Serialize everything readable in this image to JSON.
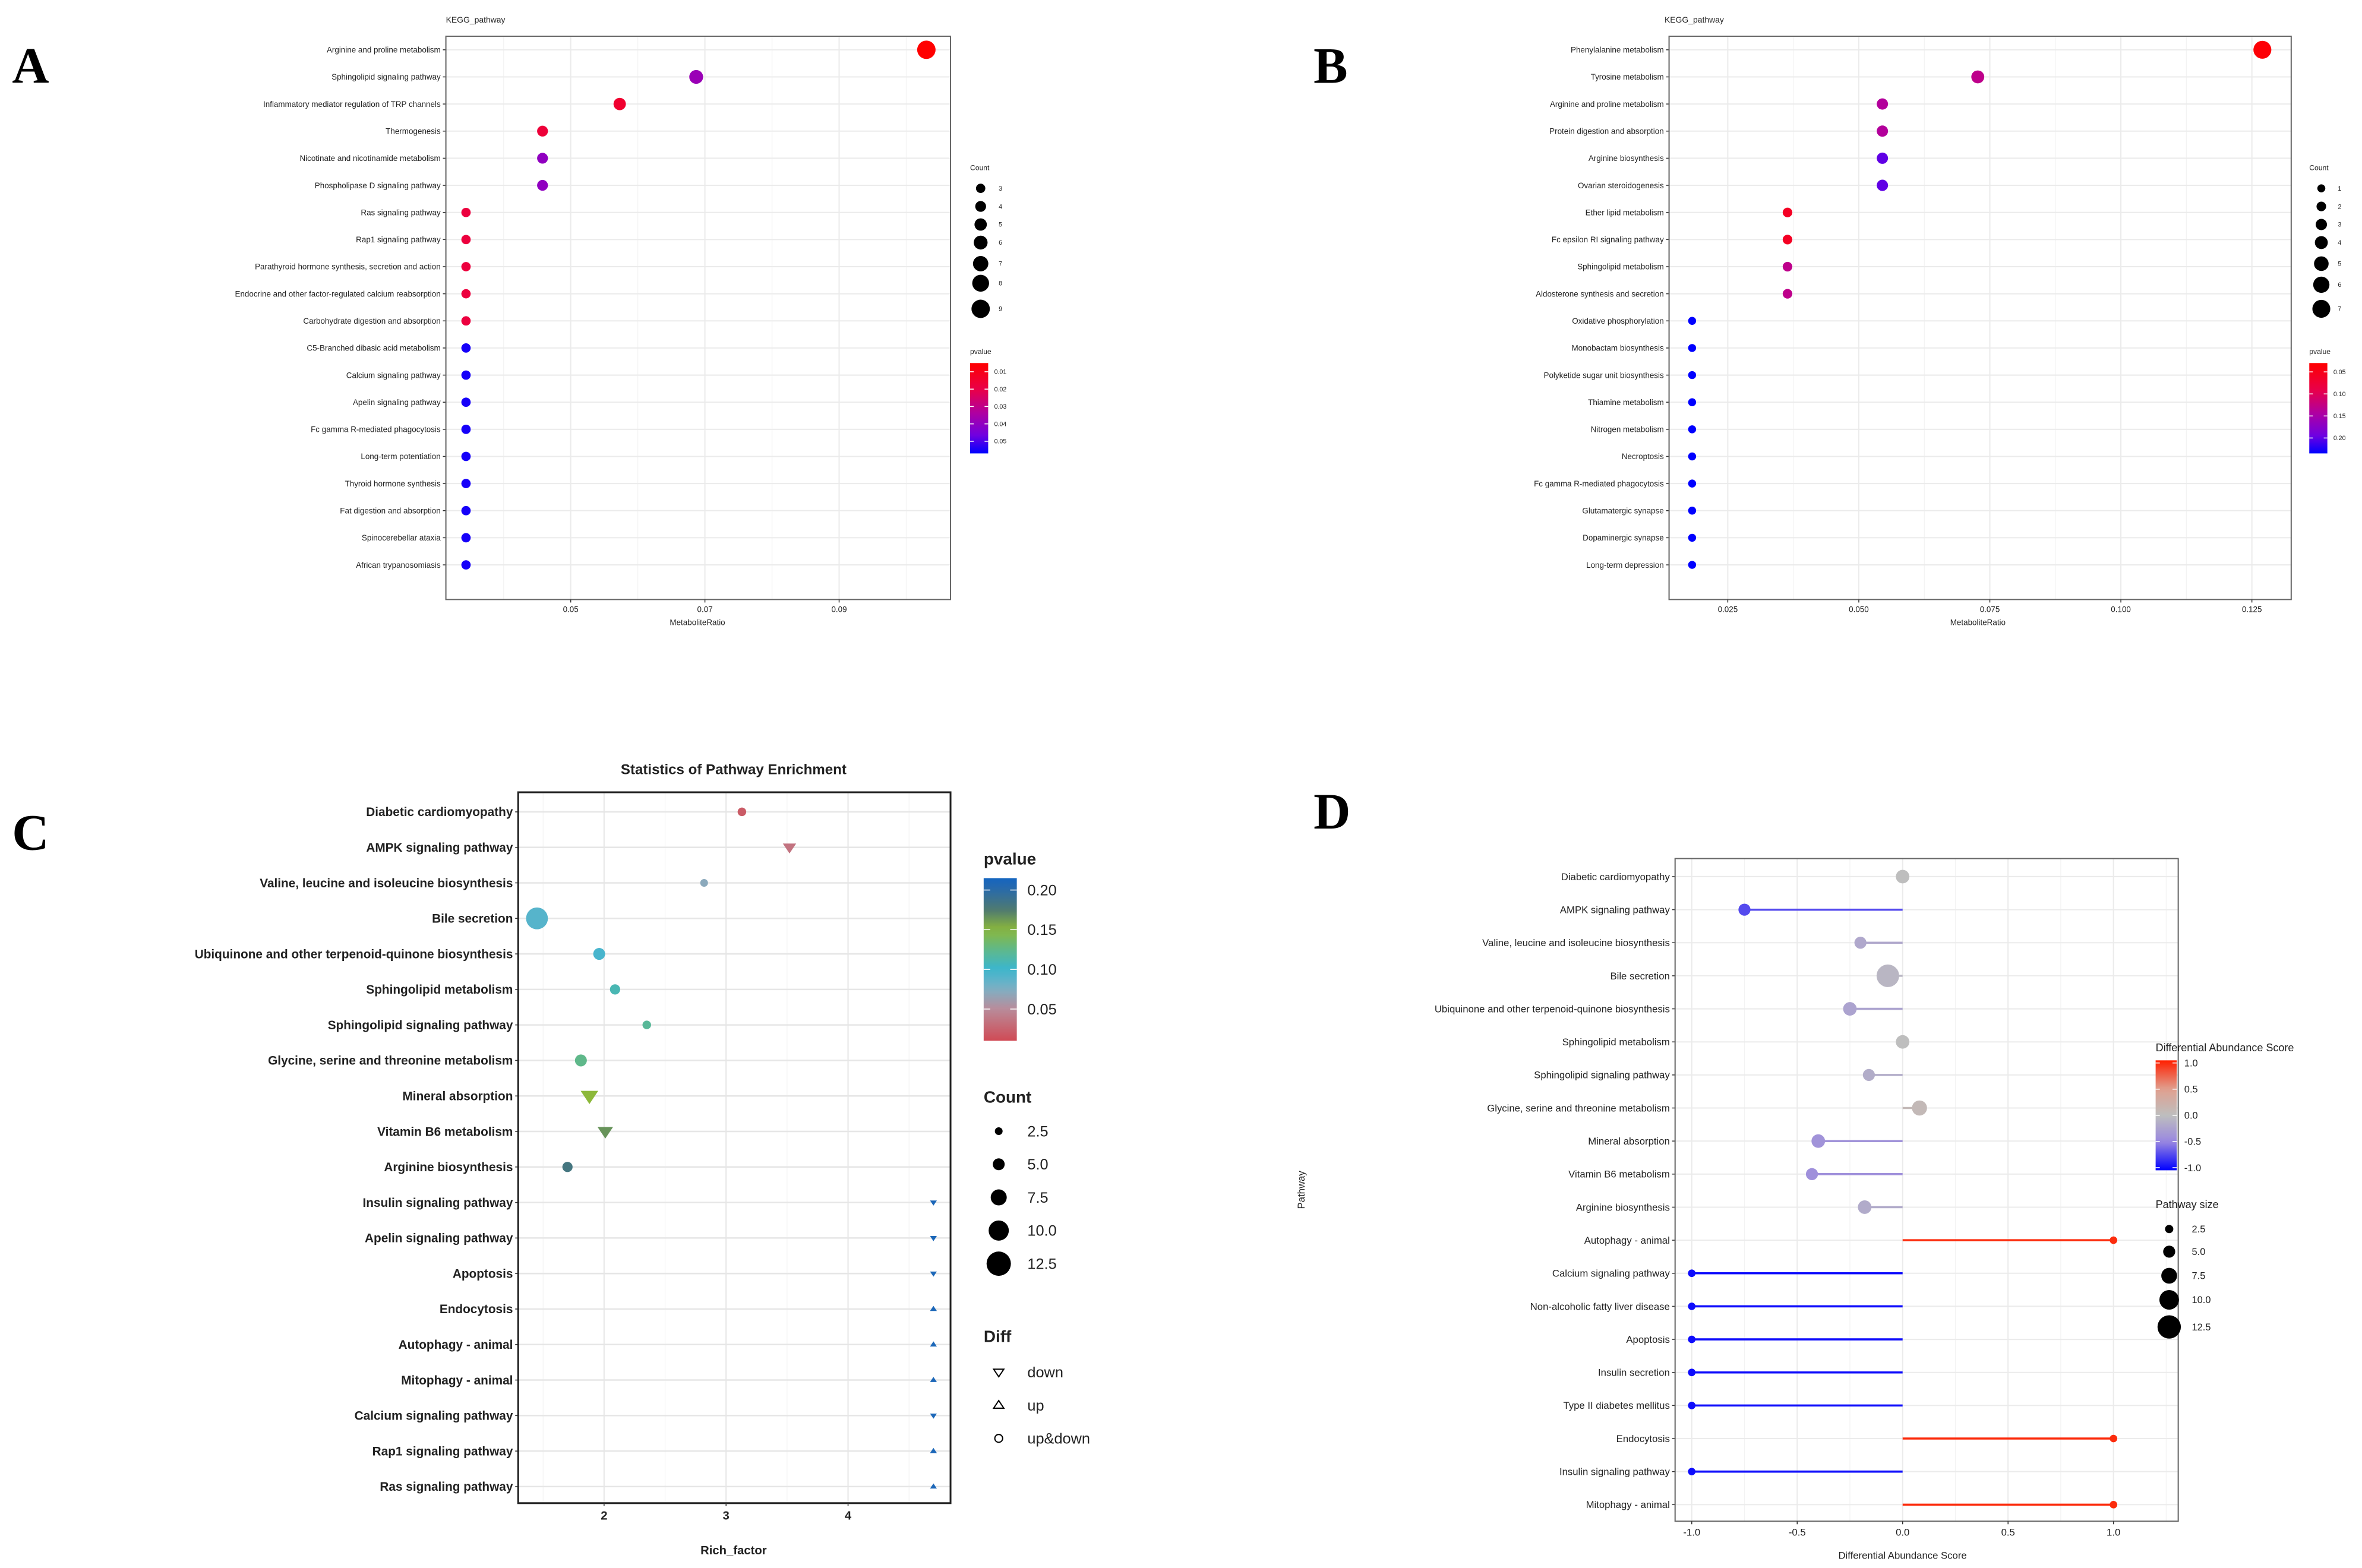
{
  "panel_labels": [
    "A",
    "B",
    "C",
    "D"
  ],
  "chart_data": [
    {
      "panel": "A",
      "type": "scatter",
      "title": "KEGG_pathway",
      "xlabel": "MetaboliteRatio",
      "xlim": [
        0.0314,
        0.1066
      ],
      "xticks": [
        0.05,
        0.07,
        0.09
      ],
      "xtick_labels": [
        "0.05",
        "0.07",
        "0.09"
      ],
      "categories": [
        "Arginine and proline metabolism",
        "Sphingolipid signaling pathway",
        "Inflammatory mediator regulation of TRP channels",
        "Thermogenesis",
        "Nicotinate and nicotinamide metabolism",
        "Phospholipase D signaling pathway",
        "Ras signaling pathway",
        "Rap1 signaling pathway",
        "Parathyroid hormone synthesis, secretion and action",
        "Endocrine and other factor-regulated calcium reabsorption",
        "Carbohydrate digestion and absorption",
        "C5-Branched dibasic acid metabolism",
        "Calcium signaling pathway",
        "Apelin signaling pathway",
        "Fc gamma R-mediated phagocytosis",
        "Long-term potentiation",
        "Thyroid hormone synthesis",
        "Fat digestion and absorption",
        "Spinocerebellar ataxia",
        "African trypanosomiasis"
      ],
      "x": [
        0.103,
        0.0687,
        0.0573,
        0.0458,
        0.0458,
        0.0458,
        0.0344,
        0.0344,
        0.0344,
        0.0344,
        0.0344,
        0.0344,
        0.0344,
        0.0344,
        0.0344,
        0.0344,
        0.0344,
        0.0344,
        0.0344,
        0.0344
      ],
      "count": [
        9,
        6,
        5,
        4,
        4,
        4,
        3,
        3,
        3,
        3,
        3,
        3,
        3,
        3,
        3,
        3,
        3,
        3,
        3,
        3
      ],
      "pvalue": [
        0.005,
        0.038,
        0.015,
        0.017,
        0.04,
        0.04,
        0.018,
        0.018,
        0.018,
        0.018,
        0.018,
        0.055,
        0.055,
        0.055,
        0.055,
        0.055,
        0.055,
        0.055,
        0.055,
        0.055
      ],
      "legend": {
        "size_title": "Count",
        "size_values": [
          3,
          4,
          5,
          6,
          7,
          8,
          9
        ],
        "size_labels": [
          "3",
          "4",
          "5",
          "6",
          "7",
          "8",
          "9"
        ],
        "color_title": "pvalue",
        "color_range": [
          0.005,
          0.057
        ],
        "color_ticks": [
          0.01,
          0.02,
          0.03,
          0.04,
          0.05
        ],
        "color_tick_labels": [
          "0.01",
          "0.02",
          "0.03",
          "0.04",
          "0.05"
        ],
        "placement": "right"
      },
      "colors": {
        "low": "#ff0000",
        "high": "#0000ff"
      }
    },
    {
      "panel": "B",
      "type": "scatter",
      "title": "KEGG_pathway",
      "xlabel": "MetaboliteRatio",
      "xlim": [
        0.0138,
        0.1325
      ],
      "xticks": [
        0.025,
        0.05,
        0.075,
        0.1,
        0.125
      ],
      "xtick_labels": [
        "0.025",
        "0.050",
        "0.075",
        "0.100",
        "0.125"
      ],
      "categories": [
        "Phenylalanine metabolism",
        "Tyrosine metabolism",
        "Arginine and proline metabolism",
        "Protein digestion and absorption",
        "Arginine biosynthesis",
        "Ovarian steroidogenesis",
        "Ether lipid metabolism",
        "Fc epsilon RI signaling pathway",
        "Sphingolipid metabolism",
        "Aldosterone synthesis and secretion",
        "Oxidative phosphorylation",
        "Monobactam biosynthesis",
        "Polyketide sugar unit biosynthesis",
        "Thiamine metabolism",
        "Nitrogen metabolism",
        "Necroptosis",
        "Fc gamma R-mediated phagocytosis",
        "Glutamatergic synapse",
        "Dopaminergic synapse",
        "Long-term depression"
      ],
      "x": [
        0.127,
        0.0727,
        0.0545,
        0.0545,
        0.0545,
        0.0545,
        0.0364,
        0.0364,
        0.0364,
        0.0364,
        0.0182,
        0.0182,
        0.0182,
        0.0182,
        0.0182,
        0.0182,
        0.0182,
        0.0182,
        0.0182,
        0.0182
      ],
      "count": [
        7,
        4,
        3,
        3,
        3,
        3,
        2,
        2,
        2,
        2,
        1,
        1,
        1,
        1,
        1,
        1,
        1,
        1,
        1,
        1
      ],
      "pvalue": [
        0.035,
        0.13,
        0.14,
        0.14,
        0.2,
        0.2,
        0.06,
        0.06,
        0.13,
        0.13,
        0.235,
        0.235,
        0.235,
        0.235,
        0.235,
        0.235,
        0.235,
        0.235,
        0.235,
        0.235
      ],
      "legend": {
        "size_title": "Count",
        "size_values": [
          1,
          2,
          3,
          4,
          5,
          6,
          7
        ],
        "size_labels": [
          "1",
          "2",
          "3",
          "4",
          "5",
          "6",
          "7"
        ],
        "color_title": "pvalue",
        "color_range": [
          0.03,
          0.235
        ],
        "color_ticks": [
          0.05,
          0.1,
          0.15,
          0.2
        ],
        "color_tick_labels": [
          "0.05",
          "0.10",
          "0.15",
          "0.20"
        ],
        "placement": "right"
      },
      "colors": {
        "low": "#ff0000",
        "high": "#0000ff"
      }
    },
    {
      "panel": "C",
      "type": "scatter",
      "title": "Statistics of Pathway Enrichment",
      "xlabel": "Rich_factor",
      "xlim": [
        1.296,
        4.84
      ],
      "xticks": [
        2,
        3,
        4
      ],
      "xtick_labels": [
        "2",
        "3",
        "4"
      ],
      "categories": [
        "Diabetic cardiomyopathy",
        "AMPK signaling pathway",
        "Valine, leucine and isoleucine biosynthesis",
        "Bile secretion",
        "Ubiquinone and other terpenoid-quinone biosynthesis",
        "Sphingolipid metabolism",
        "Sphingolipid signaling pathway",
        "Glycine, serine and threonine metabolism",
        "Mineral absorption",
        "Vitamin B6 metabolism",
        "Arginine biosynthesis",
        "Insulin signaling pathway",
        "Apelin signaling pathway",
        "Apoptosis",
        "Endocytosis",
        "Autophagy - animal",
        "Mitophagy - animal",
        "Calcium signaling pathway",
        "Rap1 signaling pathway",
        "Ras signaling pathway"
      ],
      "x": [
        3.13,
        3.52,
        2.82,
        1.45,
        1.96,
        2.09,
        2.35,
        1.81,
        1.88,
        2.01,
        1.7,
        4.7,
        4.7,
        4.7,
        4.7,
        4.7,
        4.7,
        4.7,
        4.7,
        4.7
      ],
      "count": [
        3,
        4,
        2.5,
        11,
        5,
        4,
        3,
        5,
        6,
        5,
        4,
        1,
        1,
        1,
        1,
        1,
        1,
        1,
        1,
        1
      ],
      "pvalue": [
        0.02,
        0.035,
        0.07,
        0.09,
        0.095,
        0.11,
        0.12,
        0.125,
        0.15,
        0.165,
        0.182,
        0.21,
        0.21,
        0.21,
        0.21,
        0.21,
        0.21,
        0.21,
        0.21,
        0.21
      ],
      "diff": [
        "up&down",
        "down",
        "up&down",
        "up&down",
        "up&down",
        "up&down",
        "up&down",
        "up&down",
        "down",
        "down",
        "up&down",
        "down",
        "down",
        "down",
        "up",
        "up",
        "up",
        "down",
        "up",
        "up"
      ],
      "legend": {
        "color_title": "pvalue",
        "color_range": [
          0.01,
          0.215
        ],
        "color_ticks": [
          0.2,
          0.15,
          0.1,
          0.05
        ],
        "color_tick_labels": [
          "0.20",
          "0.15",
          "0.10",
          "0.05"
        ],
        "size_title": "Count",
        "size_values": [
          2.5,
          5,
          7.5,
          10,
          12.5
        ],
        "size_labels": [
          "2.5",
          "5.0",
          "7.5",
          "10.0",
          "12.5"
        ],
        "shape_title": "Diff",
        "shape_values": [
          "down",
          "up",
          "up&down"
        ],
        "shape_labels": [
          "down",
          "up",
          "up&down"
        ],
        "placement": "right"
      }
    },
    {
      "panel": "D",
      "type": "lollipop",
      "xlabel": "Differential Abundance Score",
      "ylabel": "Pathway",
      "xlim": [
        -1.079,
        1.307
      ],
      "xticks": [
        -1,
        -0.5,
        0,
        0.5,
        1
      ],
      "xtick_labels": [
        "-1.0",
        "-0.5",
        "0.0",
        "0.5",
        "1.0"
      ],
      "categories": [
        "Diabetic cardiomyopathy",
        "AMPK signaling pathway",
        "Valine, leucine and isoleucine biosynthesis",
        "Bile secretion",
        "Ubiquinone and other terpenoid-quinone biosynthesis",
        "Sphingolipid metabolism",
        "Sphingolipid signaling pathway",
        "Glycine, serine and threonine metabolism",
        "Mineral absorption",
        "Vitamin B6 metabolism",
        "Arginine biosynthesis",
        "Autophagy - animal",
        "Calcium signaling pathway",
        "Non-alcoholic fatty liver disease",
        "Apoptosis",
        "Insulin secretion",
        "Type II diabetes mellitus",
        "Endocytosis",
        "Insulin signaling pathway",
        "Mitophagy - animal"
      ],
      "x": [
        0,
        -0.75,
        -0.2,
        -0.07,
        -0.25,
        0,
        -0.16,
        0.08,
        -0.4,
        -0.43,
        -0.18,
        1,
        -1,
        -1,
        -1,
        -1,
        -1,
        1,
        -1,
        1
      ],
      "pathway_size": [
        6,
        5,
        5,
        12,
        6,
        6,
        5,
        7,
        6,
        5,
        6,
        2,
        2,
        2,
        2,
        2,
        2,
        2,
        2,
        2
      ],
      "legend": {
        "color_title": "Differential Abundance Score",
        "color_range": [
          -1.05,
          1.05
        ],
        "color_ticks": [
          1,
          0.5,
          0,
          -0.5,
          -1
        ],
        "color_tick_labels": [
          "1.0",
          "0.5",
          "0.0",
          "-0.5",
          "-1.0"
        ],
        "size_title": "Pathway size",
        "size_values": [
          2.5,
          5,
          7.5,
          10,
          12.5
        ],
        "size_labels": [
          "2.5",
          "5.0",
          "7.5",
          "10.0",
          "12.5"
        ],
        "placement": "right"
      },
      "colors": {
        "negative": "#0000ff",
        "zero": "#bebebe",
        "positive": "#ff2000"
      }
    }
  ]
}
